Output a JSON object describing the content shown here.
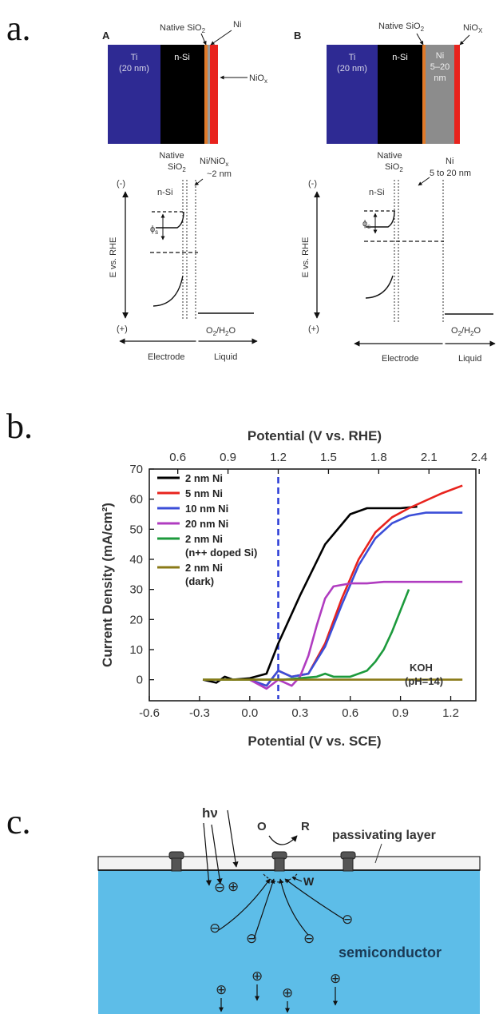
{
  "panel_letters": {
    "a": "a.",
    "b": "b.",
    "c": "c."
  },
  "panel_a": {
    "A": {
      "tag": "A",
      "layers": {
        "ti_1": "Ti",
        "ti_2": "(20 nm)",
        "nsi": "n-Si"
      },
      "native_label": "Native SiO",
      "native_sub": "2",
      "ni_label": "Ni",
      "niox_label": "NiO",
      "niox_sub": "x",
      "band_native_1": "Native",
      "band_native_2": "SiO",
      "band_native_sub": "2",
      "band_nsi": "n-Si",
      "band_ni_1": "Ni/NiO",
      "band_ni_sub": "x",
      "band_ni_2": "~2 nm",
      "neg": "(-)",
      "pos": "(+)",
      "phi": "ϕ",
      "phi_sub": "s",
      "eaxis": "E vs. RHE",
      "o2": "O",
      "o2_sub": "2",
      "h2o": "/H",
      "h2o_sub": "2",
      "o_end": "O",
      "electrode": "Electrode",
      "liquid": "Liquid"
    },
    "B": {
      "tag": "B",
      "layers": {
        "ti_1": "Ti",
        "ti_2": "(20 nm)",
        "nsi": "n-Si",
        "ni_1": "Ni",
        "ni_2": "5–20",
        "ni_3": "nm"
      },
      "native_label": "Native SiO",
      "native_sub": "2",
      "niox_label": "NiO",
      "niox_sub": "X",
      "band_native_1": "Native",
      "band_native_2": "SiO",
      "band_native_sub": "2",
      "band_nsi": "n-Si",
      "band_ni_1": "Ni",
      "band_ni_2": "5 to 20 nm",
      "neg": "(-)",
      "pos": "(+)",
      "phi": "ϕ",
      "phi_sub": "s",
      "eaxis": "E vs. RHE",
      "o2": "O",
      "o2_sub": "2",
      "h2o": "/H",
      "h2o_sub": "2",
      "o_end": "O",
      "electrode": "Electrode",
      "liquid": "Liquid"
    }
  },
  "chart_data": {
    "type": "line",
    "title": "",
    "xlabel": "Potential (V vs. SCE)",
    "ylabel": "Current Density (mA/cm²)",
    "top_axis_label": "Potential (V vs. RHE)",
    "xlim": [
      -0.6,
      1.35
    ],
    "ylim": [
      -7,
      70
    ],
    "x_ticks": [
      "-0.6",
      "-0.3",
      "0.0",
      "0.3",
      "0.6",
      "0.9",
      "1.2"
    ],
    "x_tick_values": [
      -0.6,
      -0.3,
      0.0,
      0.3,
      0.6,
      0.9,
      1.2
    ],
    "top_ticks": [
      "0.6",
      "0.9",
      "1.2",
      "1.5",
      "1.8",
      "2.1",
      "2.4"
    ],
    "top_tick_values": [
      -0.43,
      -0.13,
      0.17,
      0.47,
      0.77,
      1.07,
      1.37
    ],
    "y_ticks": [
      "0",
      "10",
      "20",
      "30",
      "40",
      "50",
      "60",
      "70"
    ],
    "y_tick_values": [
      0,
      10,
      20,
      30,
      40,
      50,
      60,
      70
    ],
    "reference_line_x": 0.17,
    "reference_line_color": "#2a3bd6",
    "legend_placement": "top-left",
    "annotation": [
      "KOH",
      "(pH=14)"
    ],
    "series": [
      {
        "name": "2 nm Ni",
        "color": "#000000",
        "x": [
          -0.28,
          -0.2,
          -0.15,
          -0.1,
          0.0,
          0.1,
          0.17,
          0.3,
          0.45,
          0.6,
          0.7,
          0.8,
          0.9,
          1.0
        ],
        "y": [
          0,
          -1,
          1,
          0,
          0.5,
          2,
          12,
          28,
          45,
          55,
          57,
          57,
          57,
          57.5
        ]
      },
      {
        "name": "5 nm Ni",
        "color": "#e8231d",
        "x": [
          0.0,
          0.1,
          0.17,
          0.25,
          0.35,
          0.45,
          0.55,
          0.65,
          0.75,
          0.85,
          0.95,
          1.05,
          1.15,
          1.27
        ],
        "y": [
          0,
          -2,
          3,
          1,
          2,
          12,
          27,
          40,
          49,
          54,
          57,
          59.5,
          62,
          64.5
        ]
      },
      {
        "name": "10 nm Ni",
        "color": "#3b4ed8",
        "x": [
          0.0,
          0.1,
          0.17,
          0.25,
          0.35,
          0.45,
          0.55,
          0.65,
          0.75,
          0.85,
          0.95,
          1.05,
          1.15,
          1.27
        ],
        "y": [
          0,
          -2,
          3,
          1,
          2,
          11,
          25,
          38,
          47,
          52,
          54.5,
          55.5,
          55.5,
          55.5
        ]
      },
      {
        "name": "20 nm Ni",
        "color": "#b03cc0",
        "x": [
          0.0,
          0.1,
          0.17,
          0.25,
          0.3,
          0.35,
          0.4,
          0.45,
          0.5,
          0.6,
          0.7,
          0.8,
          1.0,
          1.27
        ],
        "y": [
          0,
          -3,
          0,
          -2,
          1,
          8,
          18,
          27,
          31,
          32,
          32,
          32.5,
          32.5,
          32.5
        ]
      },
      {
        "name": "2 nm Ni\n(n++ doped Si)",
        "color": "#1c9a3c",
        "x": [
          -0.28,
          0.1,
          0.2,
          0.3,
          0.4,
          0.45,
          0.5,
          0.6,
          0.7,
          0.75,
          0.8,
          0.85,
          0.9,
          0.95
        ],
        "y": [
          0,
          0,
          0,
          0.5,
          1,
          2,
          1,
          1,
          3,
          6,
          10,
          16,
          23,
          30
        ]
      },
      {
        "name": "2 nm Ni\n(dark)",
        "color": "#8a7a17",
        "x": [
          -0.28,
          0.0,
          0.3,
          0.6,
          0.9,
          1.27
        ],
        "y": [
          0,
          0,
          0,
          0,
          0,
          0
        ]
      }
    ]
  },
  "panel_c": {
    "hv": "hν",
    "O": "O",
    "R": "R",
    "passivating": "passivating layer",
    "W": "W",
    "semiconductor": "semiconductor",
    "colors": {
      "semiconductor": "#5dbde8",
      "passivating": "#f3f3f3",
      "contact": "#555555"
    }
  }
}
